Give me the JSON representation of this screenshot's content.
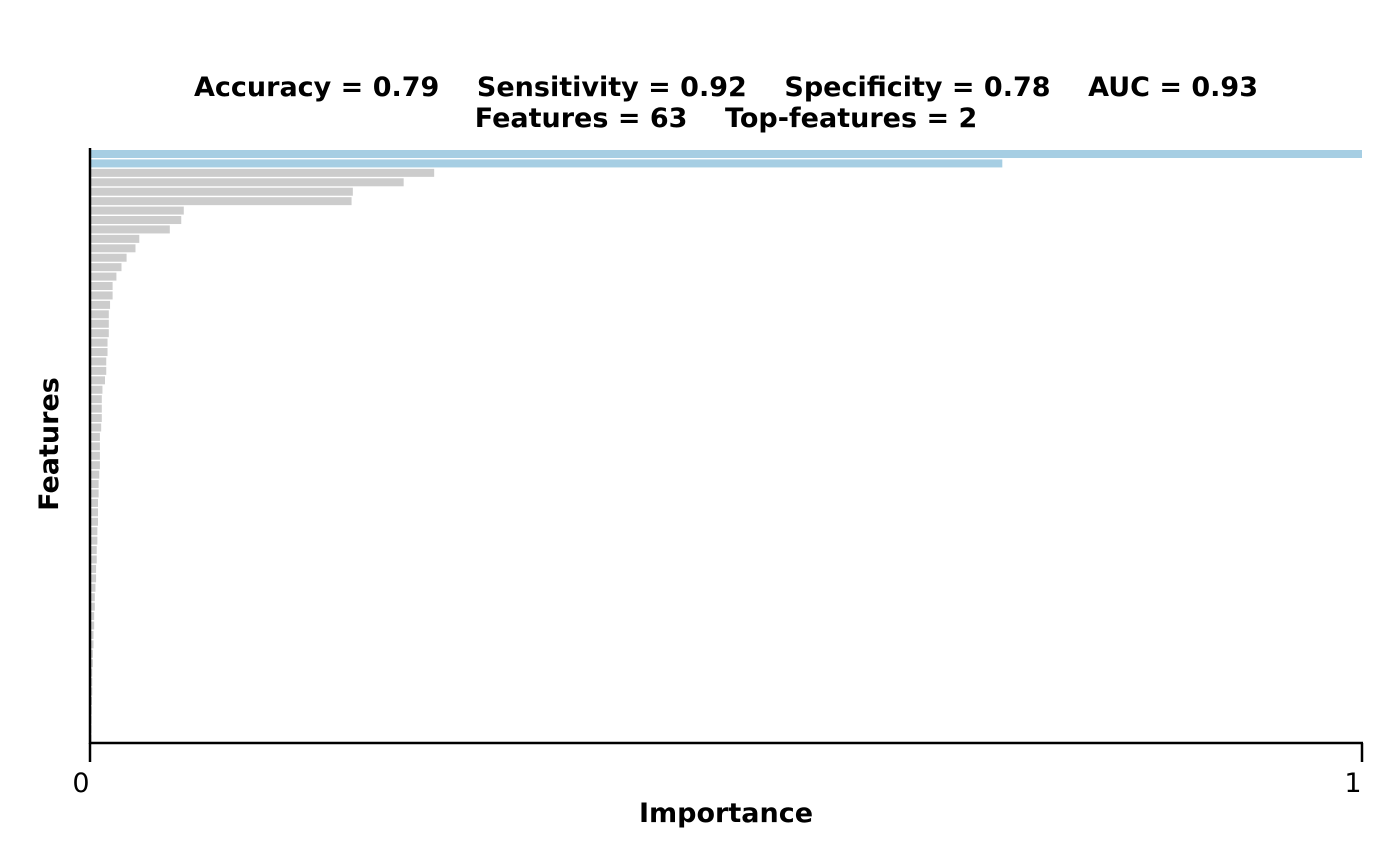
{
  "title_line1": "Accuracy = 0.79    Sensitivity = 0.92    Specificity = 0.78    AUC = 0.93",
  "title_line2": "Features = 63    Top-features = 2",
  "chart_data": {
    "type": "bar",
    "orientation": "horizontal",
    "xlabel": "Importance",
    "ylabel": "Features",
    "xlim": [
      0,
      1
    ],
    "x_ticks": [
      "0",
      "1"
    ],
    "top_color": "#a6cee3",
    "other_color": "#cccccc",
    "top_features": 2,
    "values": [
      1.0,
      0.717,
      0.27,
      0.246,
      0.206,
      0.205,
      0.073,
      0.071,
      0.062,
      0.038,
      0.035,
      0.028,
      0.024,
      0.02,
      0.017,
      0.017,
      0.015,
      0.014,
      0.014,
      0.014,
      0.013,
      0.013,
      0.012,
      0.012,
      0.011,
      0.009,
      0.0085,
      0.0085,
      0.0085,
      0.008,
      0.007,
      0.007,
      0.007,
      0.007,
      0.0065,
      0.006,
      0.006,
      0.0055,
      0.0055,
      0.0055,
      0.005,
      0.005,
      0.0045,
      0.0045,
      0.004,
      0.004,
      0.0035,
      0.003,
      0.003,
      0.0025,
      0.0025,
      0.002,
      0.002,
      0.0015,
      0.0015,
      0.001,
      0.001,
      0.001,
      0.0008,
      0.0006,
      0.0005,
      0.0003,
      0.0002
    ]
  }
}
